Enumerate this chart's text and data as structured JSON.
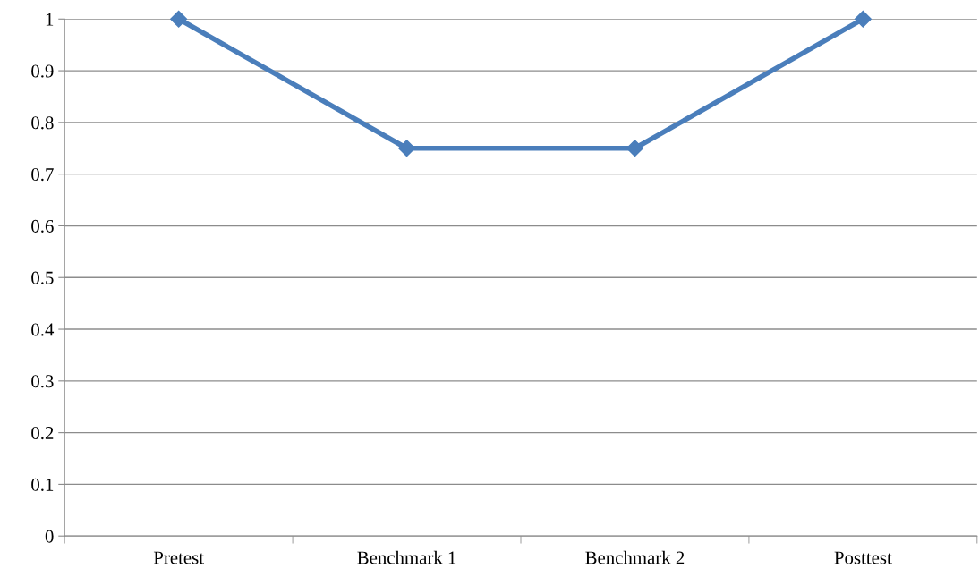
{
  "chart_data": {
    "type": "line",
    "categories": [
      "Pretest",
      "Benchmark 1",
      "Benchmark 2",
      "Posttest"
    ],
    "series": [
      {
        "color": "#4a7ebb",
        "values": [
          1,
          0.75,
          0.75,
          1
        ]
      }
    ],
    "ylim": [
      0,
      1
    ],
    "yticks": [
      0,
      0.1,
      0.2,
      0.3,
      0.4,
      0.5,
      0.6,
      0.7,
      0.8,
      0.9,
      1
    ],
    "grid": "y",
    "marker": "diamond",
    "line_style": "solid"
  }
}
